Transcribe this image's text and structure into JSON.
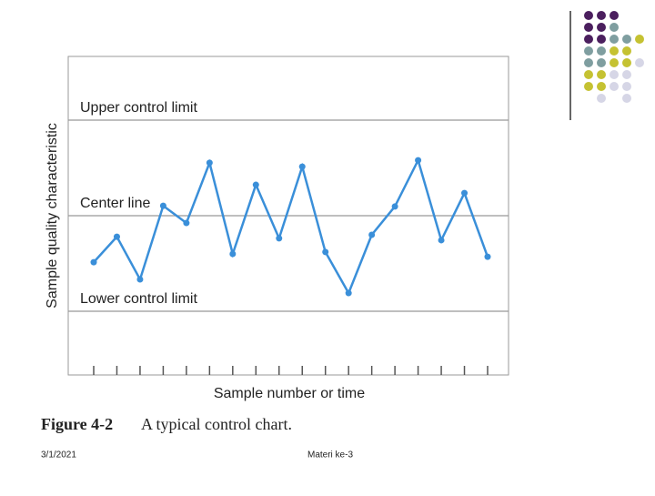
{
  "chart_data": {
    "type": "line",
    "y_axis_label": "Sample quality characteristic",
    "x_axis_label": "Sample number or time",
    "caption_number": "Figure 4-2",
    "caption_text": "A typical control chart.",
    "categories": [
      null,
      null,
      null,
      null,
      null,
      null,
      null,
      null,
      null,
      null,
      null,
      null,
      null,
      null,
      null,
      null,
      null,
      null
    ],
    "series": [
      {
        "color": "#3a8fd9",
        "values": [
          35.4,
          43.4,
          30,
          53.1,
          47.7,
          66.6,
          38,
          59.7,
          42.9,
          65.4,
          38.6,
          25.7,
          44,
          52.9,
          67.4,
          42.3,
          57.1,
          37.1
        ]
      }
    ],
    "ylim": [
      0,
      100
    ],
    "control_lines": [
      {
        "label": "Upper control limit",
        "value": 80
      },
      {
        "label": "Center line",
        "value": 50
      },
      {
        "label": "Lower control limit",
        "value": 20
      }
    ]
  },
  "footer": {
    "date": "3/1/2021",
    "text": "Materi ke-3"
  }
}
